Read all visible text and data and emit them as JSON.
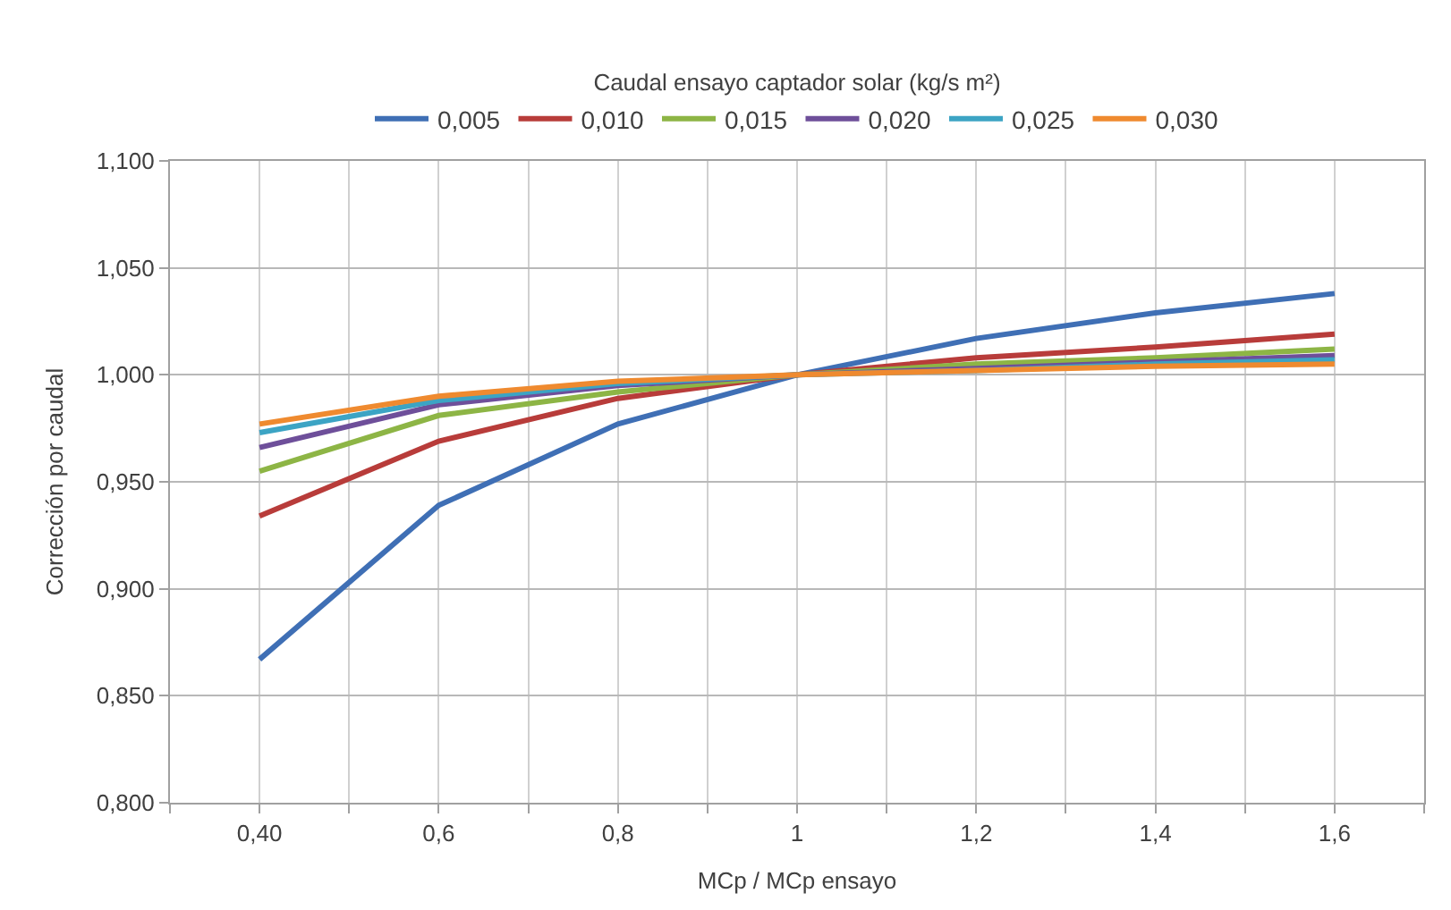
{
  "chart_data": {
    "type": "line",
    "legend_title": "Caudal ensayo captador solar (kg/s m²)",
    "xlabel": "MCp / MCp ensayo",
    "ylabel": "Corrección por caudal",
    "x": [
      0.4,
      0.6,
      0.8,
      1.0,
      1.2,
      1.4,
      1.6
    ],
    "series": [
      {
        "name": "0,005",
        "color": "#3f6fb5",
        "values": [
          0.867,
          0.939,
          0.977,
          1.0,
          1.017,
          1.029,
          1.038
        ]
      },
      {
        "name": "0,010",
        "color": "#b83c3a",
        "values": [
          0.934,
          0.969,
          0.989,
          1.0,
          1.008,
          1.013,
          1.019
        ]
      },
      {
        "name": "0,015",
        "color": "#8db545",
        "values": [
          0.955,
          0.981,
          0.992,
          1.0,
          1.005,
          1.008,
          1.012
        ]
      },
      {
        "name": "0,020",
        "color": "#6e4f9a",
        "values": [
          0.966,
          0.986,
          0.995,
          1.0,
          1.003,
          1.006,
          1.009
        ]
      },
      {
        "name": "0,025",
        "color": "#3ca4c4",
        "values": [
          0.973,
          0.988,
          0.996,
          1.0,
          1.002,
          1.005,
          1.007
        ]
      },
      {
        "name": "0,030",
        "color": "#ef8a2f",
        "values": [
          0.977,
          0.99,
          0.997,
          1.0,
          1.002,
          1.004,
          1.005
        ]
      }
    ],
    "xlim": [
      0.3,
      1.7
    ],
    "xticks": [
      {
        "value": 0.3,
        "label": null
      },
      {
        "value": 0.4,
        "label": "0,40"
      },
      {
        "value": 0.5,
        "label": null
      },
      {
        "value": 0.6,
        "label": "0,6"
      },
      {
        "value": 0.7,
        "label": null
      },
      {
        "value": 0.8,
        "label": "0,8"
      },
      {
        "value": 0.9,
        "label": null
      },
      {
        "value": 1.0,
        "label": "1"
      },
      {
        "value": 1.1,
        "label": null
      },
      {
        "value": 1.2,
        "label": "1,2"
      },
      {
        "value": 1.3,
        "label": null
      },
      {
        "value": 1.4,
        "label": "1,4"
      },
      {
        "value": 1.5,
        "label": null
      },
      {
        "value": 1.6,
        "label": "1,6"
      },
      {
        "value": 1.7,
        "label": null
      }
    ],
    "ylim": [
      0.8,
      1.1
    ],
    "yticks": [
      {
        "value": 0.8,
        "label": "0,800"
      },
      {
        "value": 0.85,
        "label": "0,850"
      },
      {
        "value": 0.9,
        "label": "0,900"
      },
      {
        "value": 0.95,
        "label": "0,950"
      },
      {
        "value": 1.0,
        "label": "1,000"
      },
      {
        "value": 1.05,
        "label": "1,050"
      },
      {
        "value": 1.1,
        "label": "1,100"
      }
    ],
    "grid": true,
    "legend": "top",
    "marker": "none",
    "line_style": "solid"
  }
}
